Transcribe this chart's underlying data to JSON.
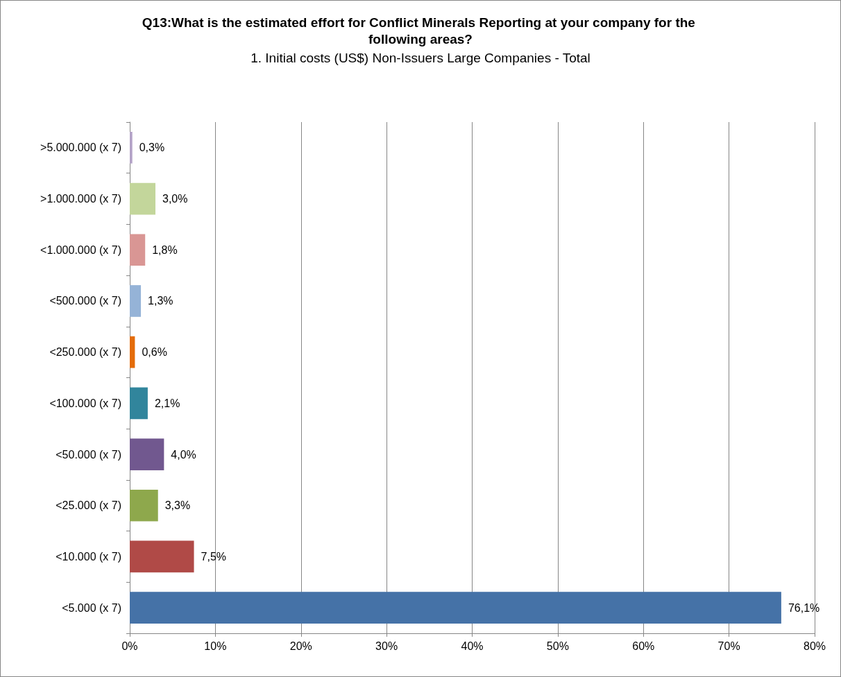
{
  "chart_data": {
    "type": "bar",
    "orientation": "horizontal",
    "title": "Q13:What is the estimated effort for Conflict Minerals Reporting at your company for the following areas?",
    "subtitle": "1. Initial costs (US$) Non-Issuers Large Companies - Total",
    "categories": [
      ">5.000.000 (x 7)",
      ">1.000.000 (x 7)",
      "<1.000.000 (x 7)",
      "<500.000 (x 7)",
      "<250.000 (x 7)",
      "<100.000 (x 7)",
      "<50.000 (x 7)",
      "<25.000 (x 7)",
      "<10.000 (x 7)",
      "<5.000 (x 7)"
    ],
    "values": [
      0.3,
      3.0,
      1.8,
      1.3,
      0.6,
      2.1,
      4.0,
      3.3,
      7.5,
      76.1
    ],
    "value_labels": [
      "0,3%",
      "3,0%",
      "1,8%",
      "1,3%",
      "0,6%",
      "2,1%",
      "4,0%",
      "3,3%",
      "7,5%",
      "76,1%"
    ],
    "colors": [
      "#b3a2c7",
      "#c3d69b",
      "#d99694",
      "#95b3d7",
      "#e46c0a",
      "#31859c",
      "#71588f",
      "#8ea84c",
      "#b04a47",
      "#4572a7"
    ],
    "xlim": [
      0,
      80
    ],
    "xticks": [
      {
        "value": 0,
        "label": "0%"
      },
      {
        "value": 10,
        "label": "10%"
      },
      {
        "value": 20,
        "label": "20%"
      },
      {
        "value": 30,
        "label": "30%"
      },
      {
        "value": 40,
        "label": "40%"
      },
      {
        "value": 50,
        "label": "50%"
      },
      {
        "value": 60,
        "label": "60%"
      },
      {
        "value": 70,
        "label": "70%"
      },
      {
        "value": 80,
        "label": "80%"
      }
    ],
    "grid": "x"
  }
}
